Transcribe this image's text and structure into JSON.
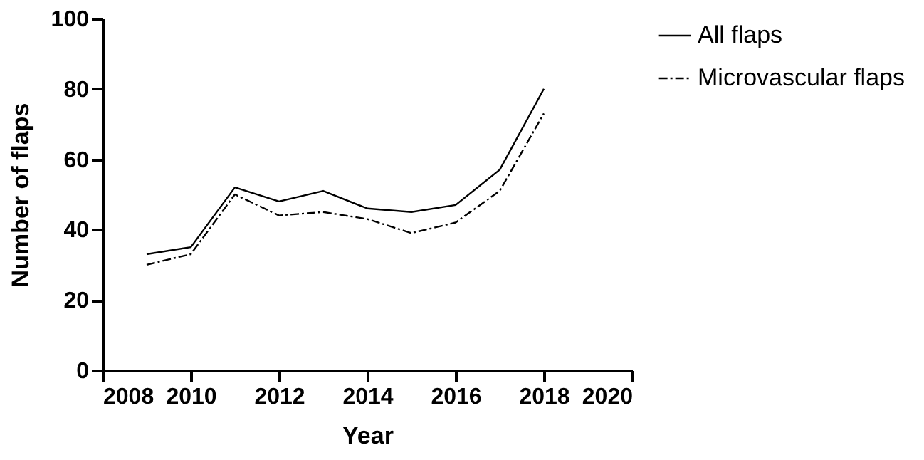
{
  "chart_data": {
    "type": "line",
    "xlabel": "Year",
    "ylabel": "Number of flaps",
    "x": [
      2009,
      2010,
      2011,
      2012,
      2013,
      2014,
      2015,
      2016,
      2017,
      2018
    ],
    "series": [
      {
        "name": "All flaps",
        "color": "#000000",
        "line_style": "solid",
        "values": [
          33,
          35,
          52,
          48,
          51,
          46,
          45,
          47,
          57,
          80
        ]
      },
      {
        "name": "Microvascular flaps",
        "color": "#000000",
        "line_style": "dashdot",
        "values": [
          30,
          33,
          50,
          44,
          45,
          43,
          39,
          42,
          51,
          73
        ]
      }
    ],
    "xlim": [
      2008,
      2020
    ],
    "xticks": [
      2008,
      2010,
      2012,
      2014,
      2016,
      2018,
      2020
    ],
    "ylim": [
      0,
      100
    ],
    "yticks": [
      0,
      20,
      40,
      60,
      80,
      100
    ],
    "grid": false,
    "legend": "top right",
    "marker": "none"
  }
}
